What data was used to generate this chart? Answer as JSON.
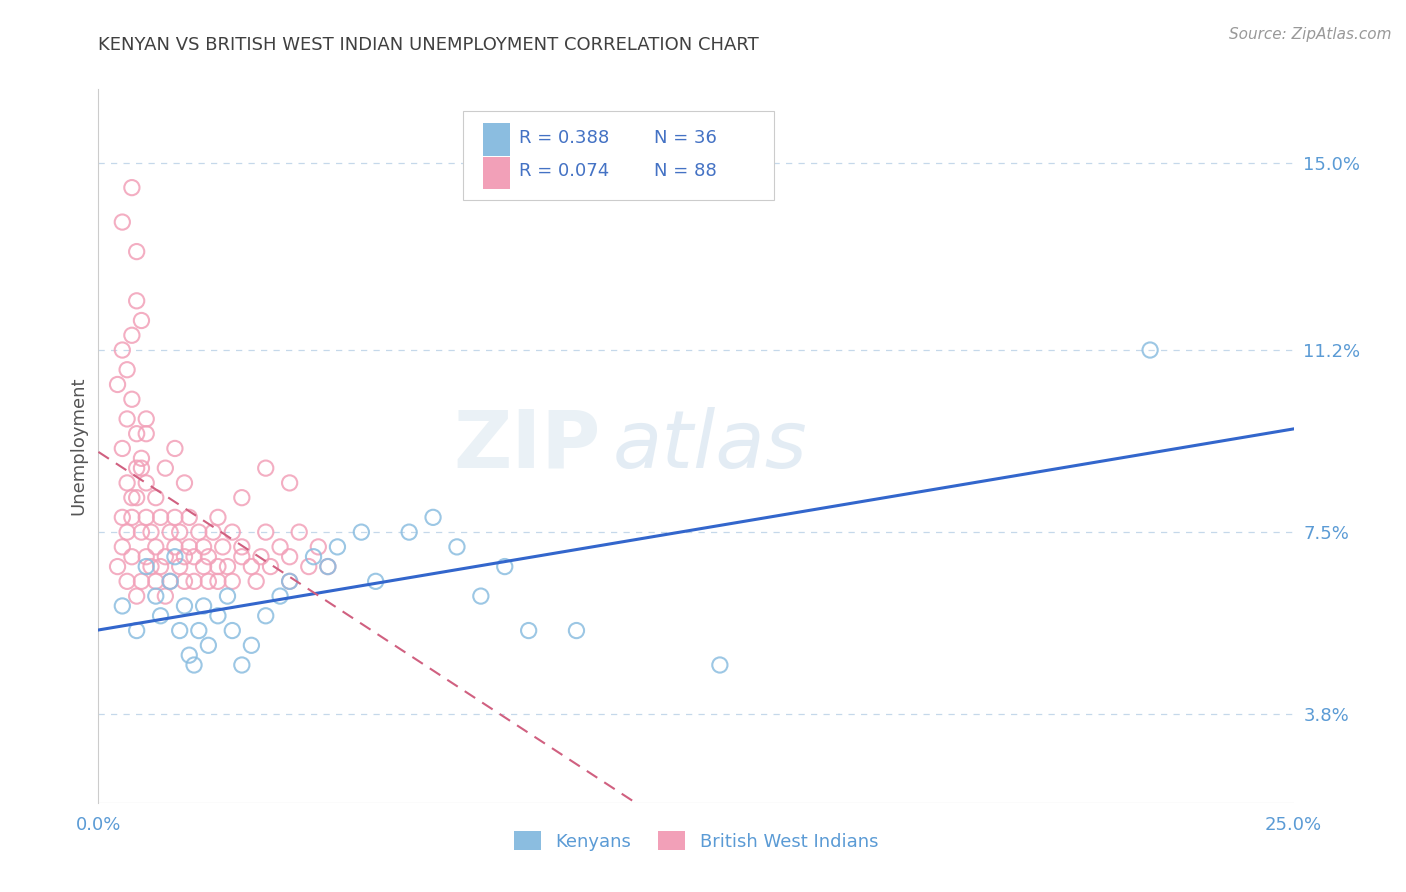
{
  "title": "KENYAN VS BRITISH WEST INDIAN UNEMPLOYMENT CORRELATION CHART",
  "source_text": "Source: ZipAtlas.com",
  "ylabel": "Unemployment",
  "xlim": [
    0.0,
    0.25
  ],
  "ylim": [
    0.02,
    0.165
  ],
  "xtick_labels": [
    "0.0%",
    "25.0%"
  ],
  "xtick_positions": [
    0.0,
    0.25
  ],
  "ytick_labels": [
    "3.8%",
    "7.5%",
    "11.2%",
    "15.0%"
  ],
  "ytick_positions": [
    0.038,
    0.075,
    0.112,
    0.15
  ],
  "kenyan_color": "#8BBDE0",
  "bwi_color": "#F2A0B8",
  "kenyan_R": 0.388,
  "kenyan_N": 36,
  "bwi_R": 0.074,
  "bwi_N": 88,
  "legend_label_kenyan": "Kenyans",
  "legend_label_bwi": "British West Indians",
  "watermark1": "ZIP",
  "watermark2": "atlas",
  "background_color": "#ffffff",
  "grid_color": "#c5d8ea",
  "title_color": "#404040",
  "tick_label_color": "#5b9bd5",
  "ylabel_color": "#555555",
  "legend_R_color": "#4472C4",
  "legend_N_color": "#4472C4",
  "reg_kenyan_color": "#3366CC",
  "reg_bwi_color": "#D06080",
  "kenyan_scatter": [
    [
      0.005,
      0.06
    ],
    [
      0.008,
      0.055
    ],
    [
      0.01,
      0.068
    ],
    [
      0.012,
      0.062
    ],
    [
      0.013,
      0.058
    ],
    [
      0.015,
      0.065
    ],
    [
      0.016,
      0.07
    ],
    [
      0.017,
      0.055
    ],
    [
      0.018,
      0.06
    ],
    [
      0.019,
      0.05
    ],
    [
      0.02,
      0.048
    ],
    [
      0.021,
      0.055
    ],
    [
      0.022,
      0.06
    ],
    [
      0.023,
      0.052
    ],
    [
      0.025,
      0.058
    ],
    [
      0.027,
      0.062
    ],
    [
      0.028,
      0.055
    ],
    [
      0.03,
      0.048
    ],
    [
      0.032,
      0.052
    ],
    [
      0.035,
      0.058
    ],
    [
      0.038,
      0.062
    ],
    [
      0.04,
      0.065
    ],
    [
      0.045,
      0.07
    ],
    [
      0.048,
      0.068
    ],
    [
      0.05,
      0.072
    ],
    [
      0.055,
      0.075
    ],
    [
      0.058,
      0.065
    ],
    [
      0.065,
      0.075
    ],
    [
      0.07,
      0.078
    ],
    [
      0.075,
      0.072
    ],
    [
      0.08,
      0.062
    ],
    [
      0.085,
      0.068
    ],
    [
      0.09,
      0.055
    ],
    [
      0.1,
      0.055
    ],
    [
      0.13,
      0.048
    ],
    [
      0.22,
      0.112
    ]
  ],
  "bwi_scatter": [
    [
      0.004,
      0.068
    ],
    [
      0.005,
      0.072
    ],
    [
      0.005,
      0.078
    ],
    [
      0.006,
      0.065
    ],
    [
      0.006,
      0.075
    ],
    [
      0.007,
      0.082
    ],
    [
      0.007,
      0.07
    ],
    [
      0.008,
      0.088
    ],
    [
      0.008,
      0.062
    ],
    [
      0.009,
      0.075
    ],
    [
      0.009,
      0.065
    ],
    [
      0.01,
      0.07
    ],
    [
      0.01,
      0.078
    ],
    [
      0.01,
      0.085
    ],
    [
      0.011,
      0.068
    ],
    [
      0.011,
      0.075
    ],
    [
      0.012,
      0.065
    ],
    [
      0.012,
      0.072
    ],
    [
      0.013,
      0.068
    ],
    [
      0.013,
      0.078
    ],
    [
      0.014,
      0.062
    ],
    [
      0.014,
      0.07
    ],
    [
      0.015,
      0.075
    ],
    [
      0.015,
      0.065
    ],
    [
      0.016,
      0.072
    ],
    [
      0.016,
      0.078
    ],
    [
      0.017,
      0.068
    ],
    [
      0.017,
      0.075
    ],
    [
      0.018,
      0.065
    ],
    [
      0.018,
      0.07
    ],
    [
      0.019,
      0.078
    ],
    [
      0.019,
      0.072
    ],
    [
      0.02,
      0.065
    ],
    [
      0.02,
      0.07
    ],
    [
      0.021,
      0.075
    ],
    [
      0.022,
      0.068
    ],
    [
      0.022,
      0.072
    ],
    [
      0.023,
      0.065
    ],
    [
      0.023,
      0.07
    ],
    [
      0.024,
      0.075
    ],
    [
      0.025,
      0.068
    ],
    [
      0.025,
      0.065
    ],
    [
      0.026,
      0.072
    ],
    [
      0.027,
      0.068
    ],
    [
      0.028,
      0.075
    ],
    [
      0.028,
      0.065
    ],
    [
      0.03,
      0.07
    ],
    [
      0.03,
      0.072
    ],
    [
      0.032,
      0.068
    ],
    [
      0.033,
      0.065
    ],
    [
      0.034,
      0.07
    ],
    [
      0.035,
      0.075
    ],
    [
      0.036,
      0.068
    ],
    [
      0.038,
      0.072
    ],
    [
      0.04,
      0.065
    ],
    [
      0.04,
      0.07
    ],
    [
      0.042,
      0.075
    ],
    [
      0.044,
      0.068
    ],
    [
      0.046,
      0.072
    ],
    [
      0.048,
      0.068
    ],
    [
      0.005,
      0.092
    ],
    [
      0.006,
      0.098
    ],
    [
      0.007,
      0.102
    ],
    [
      0.008,
      0.095
    ],
    [
      0.009,
      0.088
    ],
    [
      0.01,
      0.095
    ],
    [
      0.006,
      0.085
    ],
    [
      0.007,
      0.078
    ],
    [
      0.008,
      0.082
    ],
    [
      0.009,
      0.09
    ],
    [
      0.004,
      0.105
    ],
    [
      0.005,
      0.112
    ],
    [
      0.006,
      0.108
    ],
    [
      0.007,
      0.115
    ],
    [
      0.008,
      0.122
    ],
    [
      0.009,
      0.118
    ],
    [
      0.005,
      0.138
    ],
    [
      0.007,
      0.145
    ],
    [
      0.008,
      0.132
    ],
    [
      0.01,
      0.098
    ],
    [
      0.012,
      0.082
    ],
    [
      0.014,
      0.088
    ],
    [
      0.016,
      0.092
    ],
    [
      0.018,
      0.085
    ],
    [
      0.025,
      0.078
    ],
    [
      0.03,
      0.082
    ],
    [
      0.035,
      0.088
    ],
    [
      0.04,
      0.085
    ]
  ]
}
